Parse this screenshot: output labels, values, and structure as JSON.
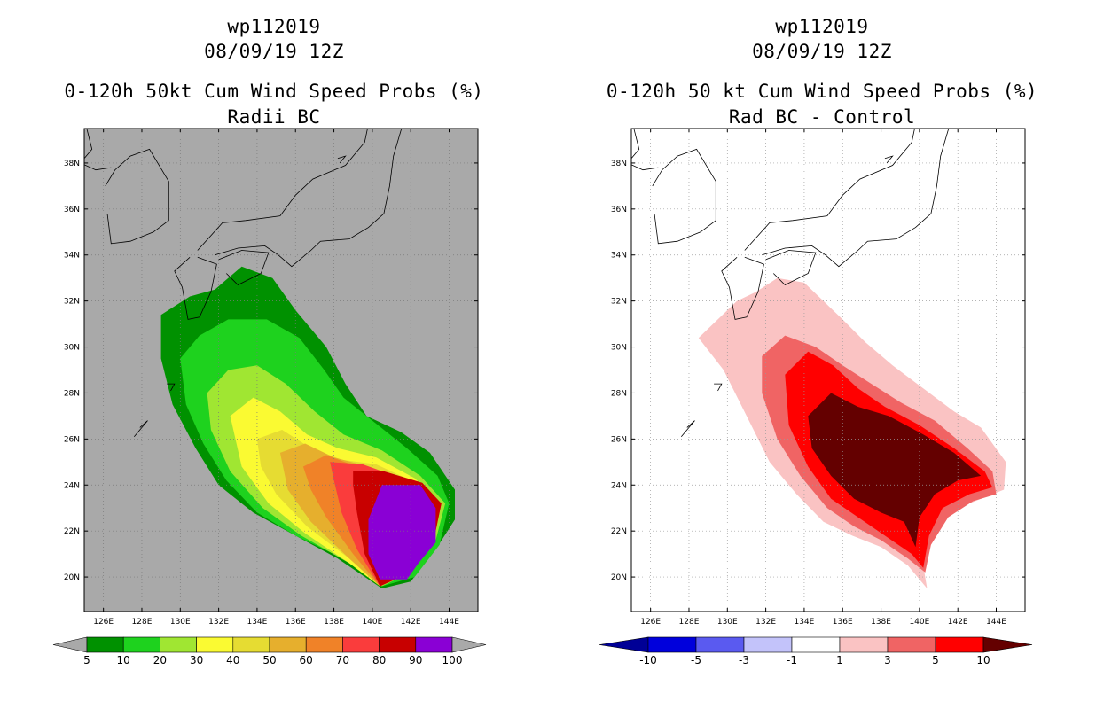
{
  "chart_data": [
    {
      "type": "heatmap",
      "title_lines": [
        "wp112019",
        "08/09/19 12Z",
        "0-120h 50kt Cum Wind Speed Probs (%)",
        "Radii BC"
      ],
      "x_ticks": [
        "126E",
        "128E",
        "130E",
        "132E",
        "134E",
        "136E",
        "138E",
        "140E",
        "142E",
        "144E"
      ],
      "y_ticks": [
        "20N",
        "22N",
        "24N",
        "26N",
        "28N",
        "30N",
        "32N",
        "34N",
        "36N",
        "38N"
      ],
      "xlim": [
        125,
        145.5
      ],
      "ylim": [
        18.5,
        39.5
      ],
      "background_color": "#a9a9a9",
      "colorbar": {
        "labels": [
          "5",
          "10",
          "20",
          "30",
          "40",
          "50",
          "60",
          "70",
          "80",
          "90",
          "100"
        ],
        "colors": [
          "#009100",
          "#1ed21e",
          "#a0e632",
          "#fafa32",
          "#e6dc32",
          "#e6af2d",
          "#f08228",
          "#fa3c3c",
          "#c80000",
          "#8a00d5"
        ],
        "end_colors": [
          "#a9a9a9",
          "#a9a9a9"
        ]
      },
      "contours": [
        {
          "level": "5-10",
          "color": "#009100",
          "points": [
            [
              129,
              31.4
            ],
            [
              130.5,
              32.2
            ],
            [
              131.8,
              32.5
            ],
            [
              133.2,
              33.5
            ],
            [
              134.8,
              33.0
            ],
            [
              136.0,
              31.6
            ],
            [
              137.6,
              30.0
            ],
            [
              138.6,
              28.4
            ],
            [
              139.7,
              27.0
            ],
            [
              141.5,
              26.3
            ],
            [
              143.0,
              25.4
            ],
            [
              144.3,
              23.8
            ],
            [
              144.3,
              22.5
            ],
            [
              143.3,
              21.2
            ],
            [
              142.0,
              19.8
            ],
            [
              140.5,
              19.5
            ],
            [
              138.2,
              20.8
            ],
            [
              136.0,
              21.8
            ],
            [
              133.8,
              22.8
            ],
            [
              132.0,
              24.0
            ],
            [
              130.8,
              25.6
            ],
            [
              129.6,
              27.5
            ],
            [
              129.0,
              29.5
            ]
          ]
        },
        {
          "level": "10-20",
          "color": "#1ed21e",
          "points": [
            [
              130.0,
              29.5
            ],
            [
              131.0,
              30.5
            ],
            [
              132.5,
              31.2
            ],
            [
              134.5,
              31.2
            ],
            [
              136.2,
              30.4
            ],
            [
              137.5,
              29.0
            ],
            [
              138.5,
              27.8
            ],
            [
              140.0,
              26.8
            ],
            [
              141.8,
              25.6
            ],
            [
              143.4,
              24.4
            ],
            [
              144.0,
              23.2
            ],
            [
              143.5,
              21.4
            ],
            [
              142.2,
              20.0
            ],
            [
              140.5,
              19.6
            ],
            [
              138.5,
              20.8
            ],
            [
              136.0,
              21.8
            ],
            [
              134.0,
              22.8
            ],
            [
              132.4,
              24.2
            ],
            [
              131.2,
              25.8
            ],
            [
              130.3,
              27.5
            ]
          ]
        },
        {
          "level": "20-30",
          "color": "#a0e632",
          "points": [
            [
              131.4,
              28.0
            ],
            [
              132.5,
              29.0
            ],
            [
              134.0,
              29.2
            ],
            [
              135.5,
              28.4
            ],
            [
              137.0,
              27.2
            ],
            [
              138.5,
              26.2
            ],
            [
              140.5,
              25.5
            ],
            [
              142.5,
              24.4
            ],
            [
              143.8,
              23.2
            ],
            [
              143.3,
              21.6
            ],
            [
              142.0,
              20.2
            ],
            [
              140.5,
              19.6
            ],
            [
              138.8,
              20.6
            ],
            [
              136.3,
              21.8
            ],
            [
              134.3,
              23.0
            ],
            [
              132.6,
              24.6
            ],
            [
              131.6,
              26.4
            ]
          ]
        },
        {
          "level": "30-40",
          "color": "#fafa32",
          "points": [
            [
              132.6,
              27.0
            ],
            [
              133.8,
              27.8
            ],
            [
              135.2,
              27.2
            ],
            [
              136.6,
              26.2
            ],
            [
              138.2,
              25.6
            ],
            [
              140.2,
              25.2
            ],
            [
              142.2,
              24.3
            ],
            [
              143.6,
              23.2
            ],
            [
              143.2,
              21.6
            ],
            [
              142.0,
              20.2
            ],
            [
              140.4,
              19.6
            ],
            [
              138.8,
              20.6
            ],
            [
              136.5,
              21.9
            ],
            [
              134.6,
              23.2
            ],
            [
              133.2,
              24.8
            ]
          ]
        },
        {
          "level": "40-50",
          "color": "#e6dc32",
          "points": [
            [
              134.0,
              26.0
            ],
            [
              135.3,
              26.4
            ],
            [
              136.8,
              25.6
            ],
            [
              138.4,
              25.1
            ],
            [
              140.2,
              24.9
            ],
            [
              142.0,
              24.2
            ],
            [
              143.6,
              23.2
            ],
            [
              143.2,
              21.6
            ],
            [
              142.0,
              20.2
            ],
            [
              140.4,
              19.6
            ],
            [
              138.8,
              20.8
            ],
            [
              136.6,
              22.2
            ],
            [
              135.0,
              23.6
            ],
            [
              134.2,
              24.8
            ]
          ]
        },
        {
          "level": "50-60",
          "color": "#e6af2d",
          "points": [
            [
              135.2,
              25.4
            ],
            [
              136.5,
              25.8
            ],
            [
              138.0,
              25.2
            ],
            [
              139.8,
              24.8
            ],
            [
              141.8,
              24.2
            ],
            [
              143.6,
              23.2
            ],
            [
              143.2,
              21.6
            ],
            [
              142.0,
              20.2
            ],
            [
              140.4,
              19.6
            ],
            [
              138.8,
              20.8
            ],
            [
              136.8,
              22.4
            ],
            [
              135.6,
              23.8
            ]
          ]
        },
        {
          "level": "60-70",
          "color": "#f08228",
          "points": [
            [
              136.4,
              24.8
            ],
            [
              137.6,
              25.3
            ],
            [
              139.2,
              24.8
            ],
            [
              141.2,
              24.3
            ],
            [
              143.6,
              23.2
            ],
            [
              143.2,
              21.6
            ],
            [
              142.0,
              20.2
            ],
            [
              140.4,
              19.6
            ],
            [
              139.0,
              21.0
            ],
            [
              137.6,
              22.6
            ],
            [
              136.8,
              23.8
            ]
          ]
        },
        {
          "level": "70-80",
          "color": "#fa3c3c",
          "points": [
            [
              137.8,
              25.0
            ],
            [
              139.5,
              24.9
            ],
            [
              141.5,
              24.3
            ],
            [
              143.6,
              23.2
            ],
            [
              143.2,
              21.6
            ],
            [
              142.0,
              20.2
            ],
            [
              140.4,
              19.6
            ],
            [
              139.2,
              21.2
            ],
            [
              138.4,
              22.8
            ],
            [
              138.0,
              24.2
            ]
          ]
        },
        {
          "level": "80-90",
          "color": "#c80000",
          "points": [
            [
              139.0,
              24.6
            ],
            [
              140.6,
              24.6
            ],
            [
              142.6,
              24.1
            ],
            [
              143.6,
              23.2
            ],
            [
              143.2,
              21.6
            ],
            [
              142.0,
              20.2
            ],
            [
              140.4,
              19.6
            ],
            [
              139.6,
              21.0
            ],
            [
              139.2,
              22.8
            ],
            [
              139.0,
              24.0
            ]
          ]
        },
        {
          "level": "90-100",
          "color": "#8a00d5",
          "points": [
            [
              140.5,
              24.0
            ],
            [
              142.5,
              24.0
            ],
            [
              143.3,
              23.0
            ],
            [
              143.3,
              21.5
            ],
            [
              142.4,
              20.6
            ],
            [
              141.8,
              19.9
            ],
            [
              140.4,
              19.9
            ],
            [
              139.8,
              21.0
            ],
            [
              139.8,
              22.5
            ]
          ]
        }
      ]
    },
    {
      "type": "heatmap",
      "title_lines": [
        "wp112019",
        "08/09/19 12Z",
        "0-120h 50 kt Cum Wind Speed Probs (%)",
        "Rad BC - Control"
      ],
      "x_ticks": [
        "126E",
        "128E",
        "130E",
        "132E",
        "134E",
        "136E",
        "138E",
        "140E",
        "142E",
        "144E"
      ],
      "y_ticks": [
        "20N",
        "22N",
        "24N",
        "26N",
        "28N",
        "30N",
        "32N",
        "34N",
        "36N",
        "38N"
      ],
      "xlim": [
        125,
        145.5
      ],
      "ylim": [
        18.5,
        39.5
      ],
      "background_color": "#ffffff",
      "colorbar": {
        "labels": [
          "-10",
          "-5",
          "-3",
          "-1",
          "1",
          "3",
          "5",
          "10"
        ],
        "colors": [
          "#0000dc",
          "#5a5af0",
          "#c3c3fa",
          "#ffffff",
          "#fac3c3",
          "#f06464",
          "#ff0000"
        ],
        "end_colors": [
          "#000096",
          "#640000"
        ]
      },
      "contours": [
        {
          "level": "1-3",
          "color": "#fac3c3",
          "points": [
            [
              128.5,
              30.4
            ],
            [
              129.5,
              31.2
            ],
            [
              130.5,
              32.0
            ],
            [
              131.5,
              32.4
            ],
            [
              132.6,
              33.0
            ],
            [
              134.0,
              32.8
            ],
            [
              135.0,
              32.0
            ],
            [
              136.0,
              31.2
            ],
            [
              137.2,
              30.2
            ],
            [
              138.6,
              29.2
            ],
            [
              140.2,
              28.2
            ],
            [
              141.8,
              27.2
            ],
            [
              143.2,
              26.5
            ],
            [
              144.5,
              25.0
            ],
            [
              144.4,
              23.8
            ],
            [
              143.5,
              23.5
            ],
            [
              142.0,
              23.0
            ],
            [
              140.8,
              22.2
            ],
            [
              140.2,
              20.5
            ],
            [
              140.4,
              19.5
            ],
            [
              139.4,
              20.5
            ],
            [
              138.0,
              21.3
            ],
            [
              136.5,
              21.8
            ],
            [
              135.0,
              22.4
            ],
            [
              133.6,
              23.6
            ],
            [
              132.2,
              25.0
            ],
            [
              131.0,
              27.0
            ],
            [
              129.8,
              29.0
            ]
          ]
        },
        {
          "level": "3-5",
          "color": "#f06464",
          "points": [
            [
              131.8,
              29.6
            ],
            [
              133.0,
              30.5
            ],
            [
              134.6,
              30.0
            ],
            [
              136.0,
              29.2
            ],
            [
              137.5,
              28.4
            ],
            [
              139.0,
              27.6
            ],
            [
              140.8,
              26.8
            ],
            [
              142.5,
              25.6
            ],
            [
              143.8,
              24.6
            ],
            [
              144.0,
              23.6
            ],
            [
              142.8,
              23.3
            ],
            [
              141.5,
              22.6
            ],
            [
              140.6,
              21.4
            ],
            [
              140.3,
              20.2
            ],
            [
              139.4,
              20.8
            ],
            [
              138.0,
              21.6
            ],
            [
              136.6,
              22.2
            ],
            [
              135.2,
              23.0
            ],
            [
              133.8,
              24.4
            ],
            [
              132.6,
              26.0
            ],
            [
              131.8,
              28.0
            ]
          ]
        },
        {
          "level": "5-10",
          "color": "#ff0000",
          "points": [
            [
              133.0,
              28.8
            ],
            [
              134.2,
              29.8
            ],
            [
              135.5,
              29.2
            ],
            [
              136.8,
              28.2
            ],
            [
              138.2,
              27.4
            ],
            [
              140.0,
              26.6
            ],
            [
              141.8,
              25.6
            ],
            [
              143.4,
              24.6
            ],
            [
              143.8,
              23.9
            ],
            [
              142.6,
              23.6
            ],
            [
              141.2,
              23.0
            ],
            [
              140.5,
              21.8
            ],
            [
              140.2,
              20.4
            ],
            [
              139.6,
              21.0
            ],
            [
              138.2,
              21.8
            ],
            [
              136.8,
              22.6
            ],
            [
              135.4,
              23.4
            ],
            [
              134.2,
              24.8
            ],
            [
              133.2,
              26.6
            ]
          ]
        },
        {
          "level": ">10",
          "color": "#640000",
          "points": [
            [
              134.2,
              27.0
            ],
            [
              135.4,
              28.0
            ],
            [
              136.8,
              27.4
            ],
            [
              138.4,
              27.0
            ],
            [
              140.2,
              26.2
            ],
            [
              141.8,
              25.4
            ],
            [
              143.2,
              24.4
            ],
            [
              142.0,
              24.2
            ],
            [
              140.8,
              23.6
            ],
            [
              140.0,
              22.6
            ],
            [
              139.8,
              21.3
            ],
            [
              139.2,
              22.4
            ],
            [
              138.0,
              22.8
            ],
            [
              136.6,
              23.4
            ],
            [
              135.4,
              24.4
            ],
            [
              134.4,
              25.6
            ]
          ]
        }
      ]
    }
  ]
}
